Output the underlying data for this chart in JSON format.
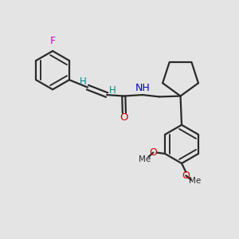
{
  "background_color": "#e4e4e4",
  "bond_color": "#2a2a2a",
  "F_color": "#cc00cc",
  "O_color": "#cc0000",
  "N_color": "#0000cc",
  "H_color": "#008888",
  "figsize": [
    3.0,
    3.0
  ],
  "dpi": 100,
  "xlim": [
    0,
    10
  ],
  "ylim": [
    0,
    10
  ]
}
